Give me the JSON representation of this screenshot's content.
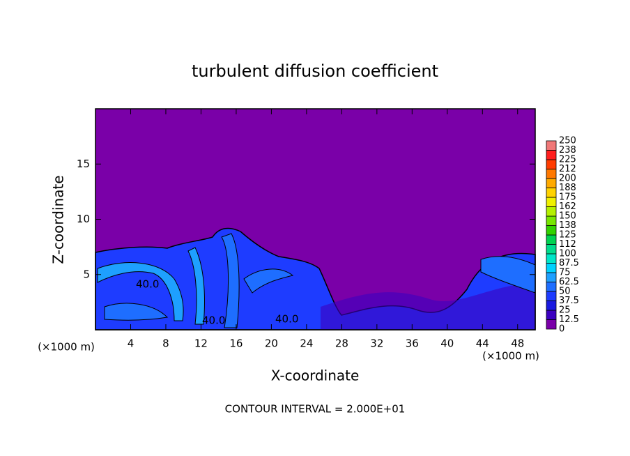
{
  "chart_data": {
    "type": "contour",
    "title": "turbulent diffusion coefficient",
    "xlabel": "X-coordinate",
    "ylabel": "Z-coordinate",
    "xunit": "(×1000 m)",
    "footnote": "CONTOUR INTERVAL = 2.000E+01",
    "contour_labels": [
      "40.0",
      "40.0",
      "40.0"
    ],
    "xlim": [
      0,
      50
    ],
    "ylim": [
      0,
      20
    ],
    "xticks": [
      4,
      8,
      12,
      16,
      20,
      24,
      28,
      32,
      36,
      40,
      44,
      48
    ],
    "yticks": [
      5,
      10,
      15
    ],
    "levels": [
      0,
      12.5,
      25,
      37.5,
      50,
      62.5,
      75,
      87.5,
      100,
      {
        "value": 112.5,
        "label": "112"
      },
      125,
      {
        "value": 137.5,
        "label": "138"
      },
      150,
      {
        "value": 162.5,
        "label": "162"
      },
      175,
      {
        "value": 187.5,
        "label": "188"
      },
      200,
      {
        "value": 212.5,
        "label": "212"
      },
      225,
      {
        "value": 237.5,
        "label": "238"
      },
      250
    ],
    "colors": [
      "#7a00a8",
      "#3c00c0",
      "#1a1ae0",
      "#1e3cff",
      "#1e6eff",
      "#1ea0ff",
      "#00d2ff",
      "#00e6c8",
      "#00dc8c",
      "#00d250",
      "#32d200",
      "#78e600",
      "#b4f000",
      "#f0f000",
      "#ffd200",
      "#ffaa00",
      "#ff7800",
      "#ff3c00",
      "#ff1e1e",
      "#f07878"
    ]
  }
}
